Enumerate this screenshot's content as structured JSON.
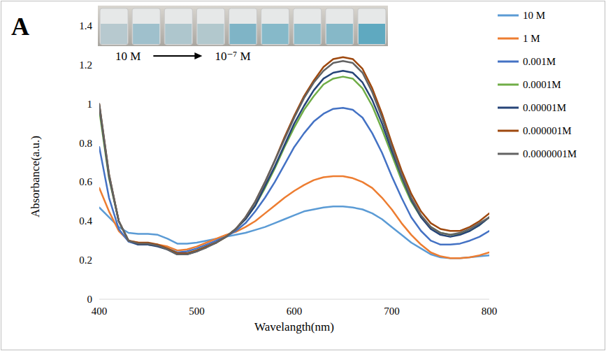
{
  "chart_data": {
    "type": "line",
    "panel_label": "A",
    "x_label": "Wavelangth(nm)",
    "y_label": "Absorbance(a.u.)",
    "annotations": [
      "10 M",
      "10⁻⁷ M"
    ],
    "x": [
      400,
      410,
      420,
      430,
      440,
      450,
      460,
      470,
      480,
      490,
      500,
      510,
      520,
      530,
      540,
      550,
      560,
      570,
      580,
      590,
      600,
      610,
      620,
      630,
      640,
      650,
      660,
      670,
      680,
      690,
      700,
      710,
      720,
      730,
      740,
      750,
      760,
      770,
      780,
      790,
      800
    ],
    "xlim": [
      400,
      800
    ],
    "xticks": [
      400,
      500,
      600,
      700,
      800
    ],
    "ylim": [
      0,
      1.4
    ],
    "yticks": [
      0,
      0.2,
      0.4,
      0.6,
      0.8,
      1,
      1.2,
      1.4
    ],
    "grid": false,
    "legend": "right",
    "series": [
      {
        "name": "10 M",
        "color": "#5b9bd5",
        "values": [
          0.47,
          0.42,
          0.37,
          0.34,
          0.335,
          0.335,
          0.33,
          0.31,
          0.285,
          0.285,
          0.29,
          0.3,
          0.31,
          0.32,
          0.33,
          0.34,
          0.355,
          0.37,
          0.39,
          0.41,
          0.43,
          0.45,
          0.46,
          0.47,
          0.475,
          0.475,
          0.47,
          0.46,
          0.44,
          0.41,
          0.37,
          0.33,
          0.29,
          0.26,
          0.23,
          0.215,
          0.21,
          0.21,
          0.215,
          0.22,
          0.225
        ]
      },
      {
        "name": "1 M",
        "color": "#ed7d31",
        "values": [
          0.57,
          0.45,
          0.35,
          0.3,
          0.29,
          0.285,
          0.28,
          0.27,
          0.25,
          0.255,
          0.27,
          0.29,
          0.31,
          0.33,
          0.345,
          0.37,
          0.4,
          0.44,
          0.48,
          0.52,
          0.555,
          0.585,
          0.61,
          0.625,
          0.63,
          0.63,
          0.62,
          0.6,
          0.57,
          0.52,
          0.46,
          0.39,
          0.33,
          0.28,
          0.24,
          0.22,
          0.21,
          0.21,
          0.215,
          0.225,
          0.24
        ]
      },
      {
        "name": "0.001M",
        "color": "#4472c4",
        "values": [
          0.78,
          0.52,
          0.36,
          0.295,
          0.28,
          0.28,
          0.275,
          0.26,
          0.24,
          0.245,
          0.26,
          0.28,
          0.3,
          0.32,
          0.35,
          0.39,
          0.45,
          0.52,
          0.6,
          0.69,
          0.78,
          0.85,
          0.91,
          0.95,
          0.975,
          0.98,
          0.97,
          0.93,
          0.85,
          0.75,
          0.63,
          0.52,
          0.42,
          0.35,
          0.3,
          0.28,
          0.28,
          0.285,
          0.3,
          0.32,
          0.35
        ]
      },
      {
        "name": "0.0001M",
        "color": "#70ad47",
        "values": [
          0.97,
          0.62,
          0.4,
          0.3,
          0.285,
          0.28,
          0.275,
          0.26,
          0.235,
          0.235,
          0.25,
          0.27,
          0.29,
          0.32,
          0.36,
          0.41,
          0.48,
          0.57,
          0.67,
          0.78,
          0.88,
          0.97,
          1.04,
          1.1,
          1.13,
          1.14,
          1.13,
          1.08,
          0.99,
          0.87,
          0.74,
          0.61,
          0.5,
          0.42,
          0.37,
          0.34,
          0.33,
          0.335,
          0.35,
          0.38,
          0.42
        ]
      },
      {
        "name": "0.00001M",
        "color": "#264478",
        "values": [
          0.99,
          0.63,
          0.4,
          0.3,
          0.28,
          0.28,
          0.27,
          0.255,
          0.23,
          0.23,
          0.245,
          0.27,
          0.29,
          0.32,
          0.36,
          0.41,
          0.48,
          0.58,
          0.68,
          0.79,
          0.9,
          0.99,
          1.07,
          1.13,
          1.16,
          1.17,
          1.16,
          1.11,
          1.02,
          0.9,
          0.76,
          0.63,
          0.51,
          0.42,
          0.36,
          0.33,
          0.32,
          0.33,
          0.35,
          0.38,
          0.42
        ]
      },
      {
        "name": "0.000001M",
        "color": "#9e480e",
        "values": [
          1.0,
          0.64,
          0.4,
          0.3,
          0.29,
          0.29,
          0.28,
          0.26,
          0.235,
          0.235,
          0.25,
          0.27,
          0.29,
          0.32,
          0.36,
          0.42,
          0.5,
          0.6,
          0.71,
          0.83,
          0.94,
          1.04,
          1.12,
          1.19,
          1.23,
          1.24,
          1.23,
          1.18,
          1.08,
          0.95,
          0.8,
          0.66,
          0.54,
          0.45,
          0.39,
          0.36,
          0.35,
          0.35,
          0.37,
          0.4,
          0.44
        ]
      },
      {
        "name": "0.0000001M",
        "color": "#636363",
        "values": [
          1.0,
          0.64,
          0.4,
          0.3,
          0.285,
          0.285,
          0.275,
          0.255,
          0.23,
          0.23,
          0.245,
          0.265,
          0.29,
          0.32,
          0.36,
          0.42,
          0.5,
          0.6,
          0.71,
          0.82,
          0.93,
          1.03,
          1.11,
          1.17,
          1.21,
          1.22,
          1.21,
          1.16,
          1.06,
          0.93,
          0.78,
          0.64,
          0.52,
          0.43,
          0.37,
          0.34,
          0.33,
          0.34,
          0.36,
          0.39,
          0.42
        ]
      }
    ]
  }
}
